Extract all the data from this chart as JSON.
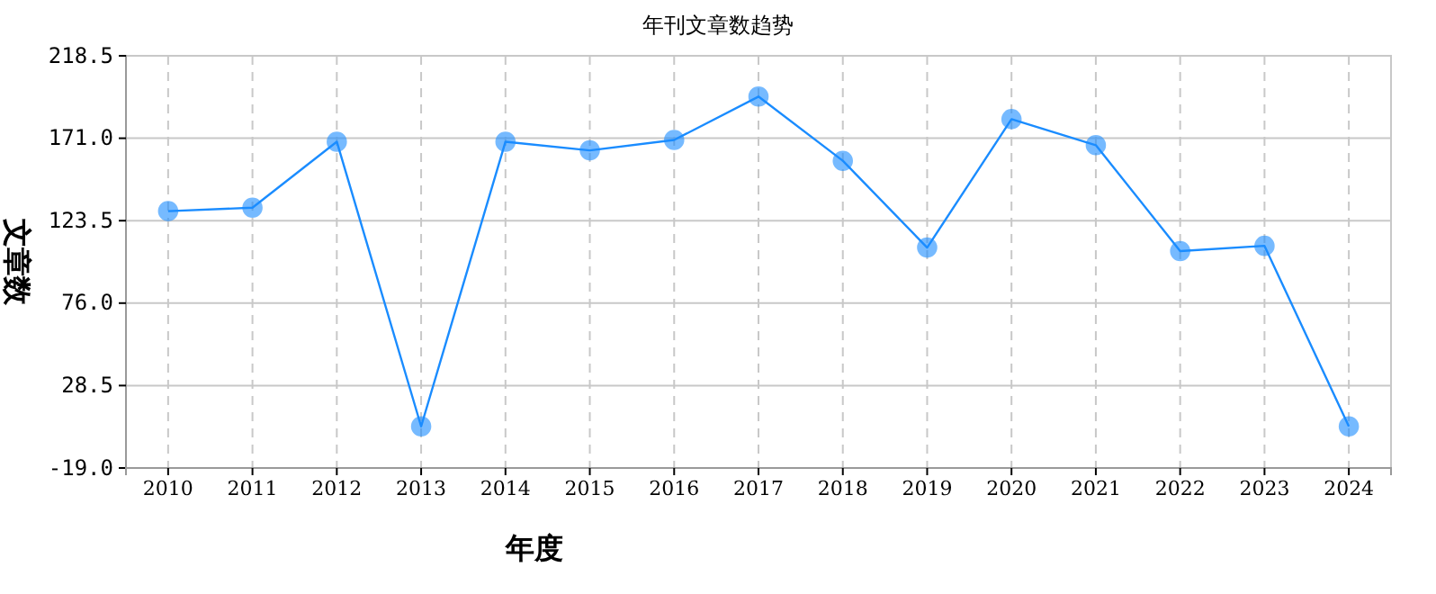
{
  "chart_data": {
    "type": "line",
    "title": "年刊文章数趋势",
    "xlabel": "年度",
    "ylabel": "文章数",
    "categories": [
      "2010",
      "2011",
      "2012",
      "2013",
      "2014",
      "2015",
      "2016",
      "2017",
      "2018",
      "2019",
      "2020",
      "2021",
      "2022",
      "2023",
      "2024"
    ],
    "series": [
      {
        "color": "#1a8cff",
        "values": [
          129,
          131,
          169,
          5,
          169,
          164,
          170,
          195,
          158,
          108,
          182,
          167,
          106,
          109,
          5
        ]
      }
    ],
    "ylim": [
      -19,
      218.5
    ],
    "yticks": [
      {
        "value": -19,
        "label": "-19.0"
      },
      {
        "value": 28.5,
        "label": "28.5"
      },
      {
        "value": 76,
        "label": "76.0"
      },
      {
        "value": 123.5,
        "label": "123.5"
      },
      {
        "value": 171,
        "label": "171.0"
      },
      {
        "value": 218.5,
        "label": "218.5"
      }
    ],
    "grid": true,
    "marker": "circle",
    "line_style": "solid"
  }
}
